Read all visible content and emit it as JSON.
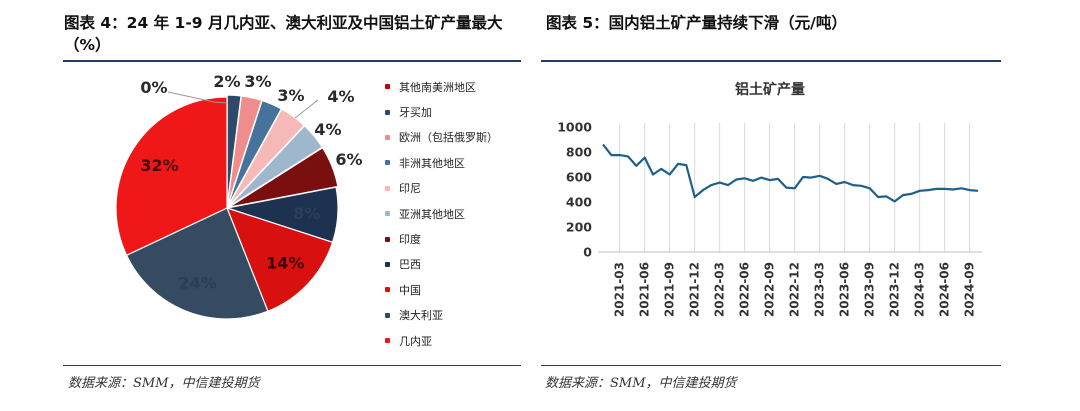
{
  "left": {
    "title": "图表 4：24 年 1-9 月几内亚、澳大利亚及中国铝土矿产量最大（%）",
    "source": "数据来源：SMM，中信建投期货"
  },
  "right": {
    "title": "图表 5：国内铝土矿产量持续下滑（元/吨）",
    "source": "数据来源：SMM，中信建投期货"
  },
  "chart_data": [
    {
      "type": "pie",
      "title": "",
      "slices": [
        {
          "label": "其他南美洲地区",
          "value": 0,
          "display": "0%",
          "color": "#c00000"
        },
        {
          "label": "牙买加",
          "value": 2,
          "display": "2%",
          "color": "#2e4a6b"
        },
        {
          "label": "欧洲（包括俄罗斯）",
          "value": 3,
          "display": "3%",
          "color": "#ef8c8c"
        },
        {
          "label": "非洲其他地区",
          "value": 3,
          "display": "3%",
          "color": "#46729b"
        },
        {
          "label": "印尼",
          "value": 4,
          "display": "4%",
          "color": "#f7b8b8"
        },
        {
          "label": "亚洲其他地区",
          "value": 4,
          "display": "4%",
          "color": "#9fb7cc"
        },
        {
          "label": "印度",
          "value": 6,
          "display": "6%",
          "color": "#7a0f0f"
        },
        {
          "label": "巴西",
          "value": 8,
          "display": "8%",
          "color": "#1d3150"
        },
        {
          "label": "中国",
          "value": 14,
          "display": "14%",
          "color": "#d81010"
        },
        {
          "label": "澳大利亚",
          "value": 24,
          "display": "24%",
          "color": "#344b61"
        },
        {
          "label": "几内亚",
          "value": 32,
          "display": "32%",
          "color": "#ef1717"
        }
      ]
    },
    {
      "type": "line",
      "title": "铝土矿产量",
      "xlabel": "",
      "ylabel": "",
      "ylim": [
        0,
        1000
      ],
      "yticks": [
        0,
        200,
        400,
        600,
        800,
        1000
      ],
      "xtick_labels": [
        "2021-03",
        "2021-06",
        "2021-09",
        "2021-12",
        "2022-03",
        "2022-06",
        "2022-09",
        "2022-12",
        "2023-03",
        "2023-06",
        "2023-09",
        "2023-12",
        "2024-03",
        "2024-06",
        "2024-09"
      ],
      "line_color": "#1f5f8b",
      "series": [
        {
          "name": "",
          "x": [
            "2021-01",
            "2021-02",
            "2021-03",
            "2021-04",
            "2021-05",
            "2021-06",
            "2021-07",
            "2021-08",
            "2021-09",
            "2021-10",
            "2021-11",
            "2021-12",
            "2022-01",
            "2022-02",
            "2022-03",
            "2022-04",
            "2022-05",
            "2022-06",
            "2022-07",
            "2022-08",
            "2022-09",
            "2022-10",
            "2022-11",
            "2022-12",
            "2023-01",
            "2023-02",
            "2023-03",
            "2023-04",
            "2023-05",
            "2023-06",
            "2023-07",
            "2023-08",
            "2023-09",
            "2023-10",
            "2023-11",
            "2023-12",
            "2024-01",
            "2024-02",
            "2024-03",
            "2024-04",
            "2024-05",
            "2024-06",
            "2024-07",
            "2024-08",
            "2024-09",
            "2024-10"
          ],
          "values": [
            860,
            775,
            775,
            765,
            690,
            755,
            620,
            665,
            620,
            705,
            695,
            440,
            495,
            535,
            555,
            535,
            580,
            590,
            570,
            595,
            575,
            585,
            515,
            510,
            600,
            595,
            610,
            585,
            545,
            560,
            535,
            530,
            510,
            440,
            445,
            405,
            455,
            465,
            490,
            495,
            505,
            505,
            500,
            510,
            495,
            490
          ]
        }
      ]
    }
  ]
}
